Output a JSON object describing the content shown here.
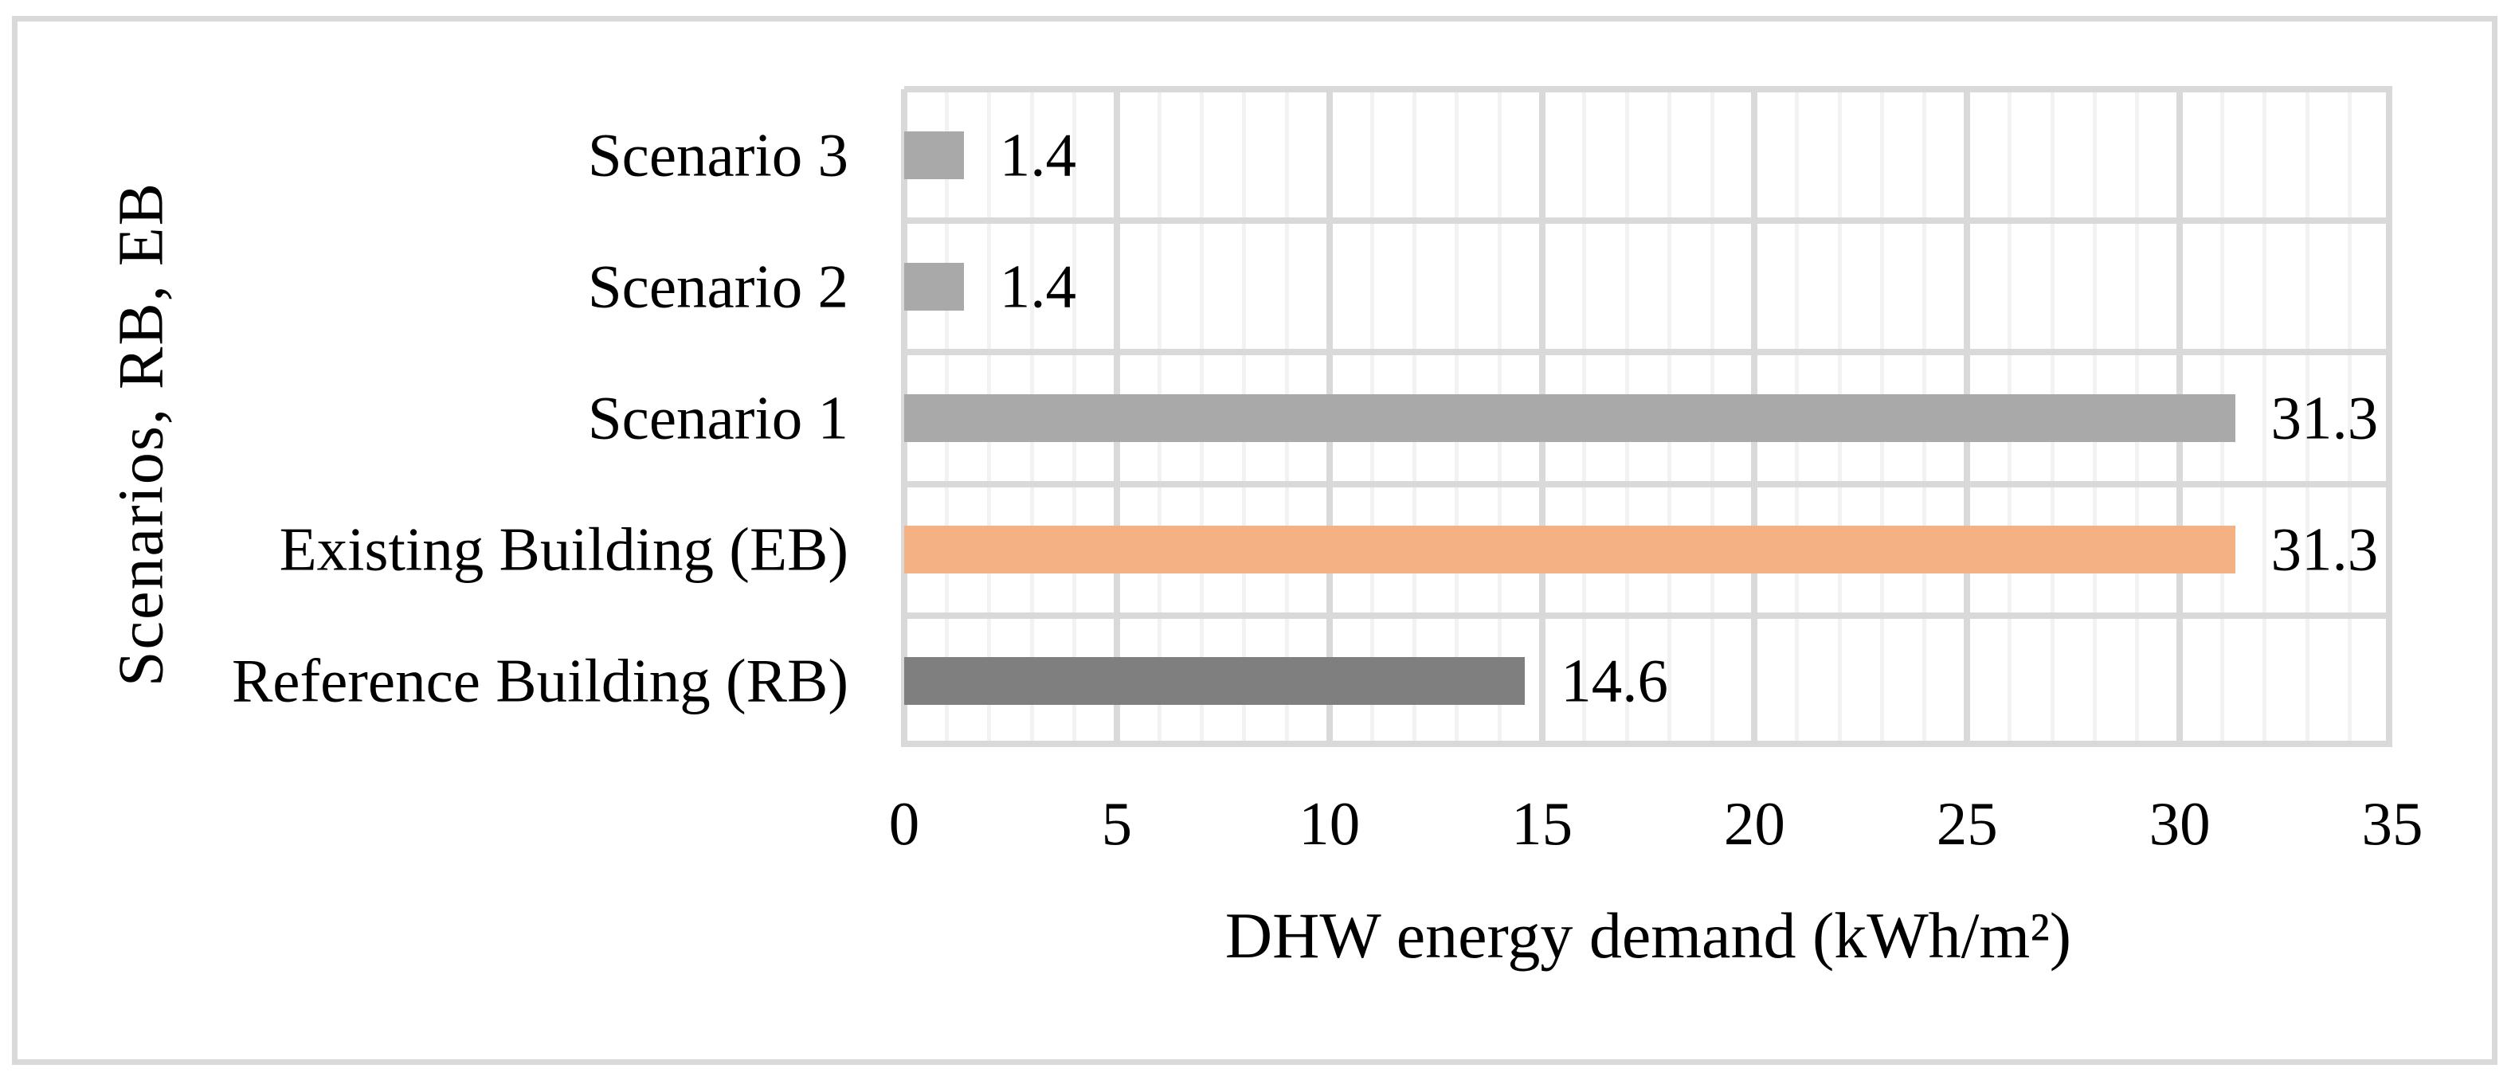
{
  "figure": {
    "background": "#FFFFFF",
    "border_color": "#D9D9D9"
  },
  "chart_data": {
    "type": "bar",
    "orientation": "horizontal",
    "title": "",
    "xlabel": "DHW energy demand (kWh/m²)",
    "ylabel": "Scenarios, RB, EB",
    "xlim": [
      0,
      35
    ],
    "x_ticks": [
      "0",
      "5",
      "10",
      "15",
      "20",
      "25",
      "30",
      "35"
    ],
    "x_tick_values": [
      0,
      5,
      10,
      15,
      20,
      25,
      30,
      35
    ],
    "minor_grid_step": 1,
    "major_grid_step": 5,
    "grid": "on",
    "legend": "none",
    "categories": [
      "Scenario 3",
      "Scenario 2",
      "Scenario 1",
      "Existing Building (EB)",
      "Reference Building (RB)"
    ],
    "values": [
      1.4,
      1.4,
      31.3,
      31.3,
      14.6
    ],
    "data_labels": [
      "1.4",
      "1.4",
      "31.3",
      "31.3",
      "14.6"
    ],
    "bar_colors": [
      "#A9A9A9",
      "#A9A9A9",
      "#A9A9A9",
      "#F4B183",
      "#7F7F7F"
    ],
    "colors": {
      "major_gridline": "#D9D9D9",
      "minor_gridline": "#F2F2F2",
      "text": "#000000"
    }
  }
}
